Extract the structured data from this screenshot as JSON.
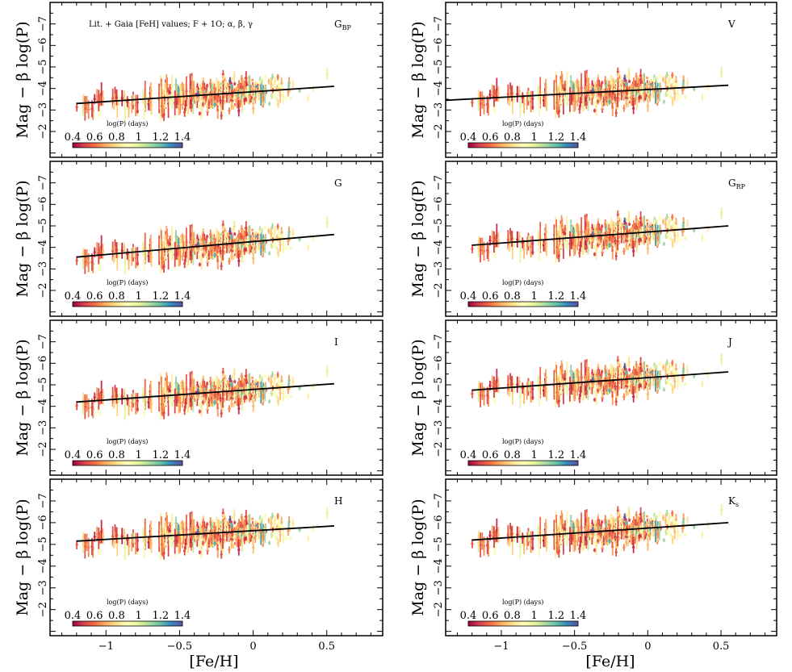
{
  "figure": {
    "header_note": "Lit. + Gaia [FeH] values; F + 1O;  α,  β,  γ",
    "xlabel": "[Fe/H]",
    "ylabel": "Mag − β log(P)"
  },
  "colors": {
    "colormap": [
      "#9e0142",
      "#d53e4f",
      "#f46d43",
      "#fdae61",
      "#fee08b",
      "#ffffbf",
      "#e6f598",
      "#abdda4",
      "#66c2a5",
      "#3288bd",
      "#5e4fa2"
    ],
    "fit_line": "#000000"
  },
  "colorbar": {
    "title": "log(P) (days)",
    "range": [
      0.4,
      1.4
    ],
    "ticks": [
      0.4,
      0.6,
      0.8,
      1.0,
      1.2,
      1.4
    ],
    "tick_labels": [
      "0.4",
      "0.6",
      "0.8",
      "1",
      "1.2",
      "1.4"
    ]
  },
  "chart_data": [
    {
      "type": "scatter",
      "band": "G_BP",
      "label_main": "G",
      "label_sub": "BP",
      "xlim": [
        -1.38,
        0.88
      ],
      "ylim": [
        -0.8,
        -8.0
      ],
      "yticks": [
        -2,
        -3,
        -4,
        -5,
        -6,
        -7
      ],
      "xticks": [
        -1,
        -0.5,
        0,
        0.5
      ],
      "fit": {
        "x": [
          -1.2,
          0.55
        ],
        "y": [
          -3.3,
          -4.1
        ]
      },
      "show_xticklabels": false
    },
    {
      "type": "scatter",
      "band": "V",
      "label_main": "V",
      "label_sub": "",
      "xlim": [
        -1.38,
        0.88
      ],
      "ylim": [
        -0.8,
        -8.0
      ],
      "yticks": [
        -2,
        -3,
        -4,
        -5,
        -6,
        -7
      ],
      "xticks": [
        -1,
        -0.5,
        0,
        0.5
      ],
      "fit": {
        "x": [
          -1.38,
          0.55
        ],
        "y": [
          -3.45,
          -4.15
        ]
      },
      "show_xticklabels": false
    },
    {
      "type": "scatter",
      "band": "G",
      "label_main": "G",
      "label_sub": "",
      "xlim": [
        -1.38,
        0.88
      ],
      "ylim": [
        -0.8,
        -8.0
      ],
      "yticks": [
        -2,
        -3,
        -4,
        -5,
        -6,
        -7
      ],
      "xticks": [
        -1,
        -0.5,
        0,
        0.5
      ],
      "fit": {
        "x": [
          -1.2,
          0.55
        ],
        "y": [
          -3.55,
          -4.6
        ]
      },
      "show_xticklabels": false
    },
    {
      "type": "scatter",
      "band": "G_RP",
      "label_main": "G",
      "label_sub": "RP",
      "xlim": [
        -1.38,
        0.88
      ],
      "ylim": [
        -0.8,
        -8.0
      ],
      "yticks": [
        -2,
        -3,
        -4,
        -5,
        -6,
        -7
      ],
      "xticks": [
        -1,
        -0.5,
        0,
        0.5
      ],
      "fit": {
        "x": [
          -1.2,
          0.55
        ],
        "y": [
          -4.1,
          -5.0
        ]
      },
      "show_xticklabels": false
    },
    {
      "type": "scatter",
      "band": "I",
      "label_main": "I",
      "label_sub": "",
      "xlim": [
        -1.38,
        0.88
      ],
      "ylim": [
        -0.8,
        -8.0
      ],
      "yticks": [
        -2,
        -3,
        -4,
        -5,
        -6,
        -7
      ],
      "xticks": [
        -1,
        -0.5,
        0,
        0.5
      ],
      "fit": {
        "x": [
          -1.2,
          0.55
        ],
        "y": [
          -4.2,
          -5.05
        ]
      },
      "show_xticklabels": false
    },
    {
      "type": "scatter",
      "band": "J",
      "label_main": "J",
      "label_sub": "",
      "xlim": [
        -1.38,
        0.88
      ],
      "ylim": [
        -0.8,
        -8.0
      ],
      "yticks": [
        -2,
        -3,
        -4,
        -5,
        -6,
        -7
      ],
      "xticks": [
        -1,
        -0.5,
        0,
        0.5
      ],
      "fit": {
        "x": [
          -1.2,
          0.55
        ],
        "y": [
          -4.75,
          -5.6
        ]
      },
      "show_xticklabels": false
    },
    {
      "type": "scatter",
      "band": "H",
      "label_main": "H",
      "label_sub": "",
      "xlim": [
        -1.38,
        0.88
      ],
      "ylim": [
        -0.8,
        -8.0
      ],
      "yticks": [
        -2,
        -3,
        -4,
        -5,
        -6,
        -7
      ],
      "xticks": [
        -1,
        -0.5,
        0,
        0.5
      ],
      "xtick_labels": [
        "−1",
        "−0.5",
        "0",
        "0.5"
      ],
      "fit": {
        "x": [
          -1.2,
          0.55
        ],
        "y": [
          -5.15,
          -5.85
        ]
      },
      "show_xticklabels": true
    },
    {
      "type": "scatter",
      "band": "K_s",
      "label_main": "K",
      "label_sub": "s",
      "xlim": [
        -1.38,
        0.88
      ],
      "ylim": [
        -0.8,
        -8.0
      ],
      "yticks": [
        -2,
        -3,
        -4,
        -5,
        -6,
        -7
      ],
      "xticks": [
        -1,
        -0.5,
        0,
        0.5
      ],
      "xtick_labels": [
        "−1",
        "−0.5",
        "0",
        "0.5"
      ],
      "fit": {
        "x": [
          -1.2,
          0.55
        ],
        "y": [
          -5.2,
          -6.0
        ]
      },
      "show_xticklabels": true
    }
  ]
}
